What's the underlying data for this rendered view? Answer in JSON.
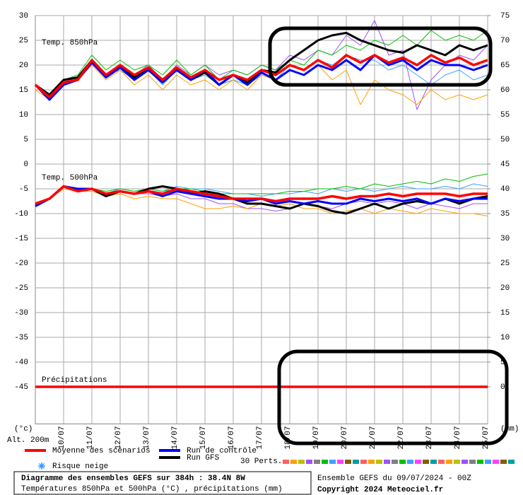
{
  "chart_data": {
    "type": "line",
    "title": "Diagramme des ensembles GEFS sur 384h : 38.4N 8W",
    "subtitle": "Températures 850hPa et 500hPa (°C) , précipitations (mm)",
    "run_info": "Ensemble GEFS du 09/07/2024 - 00Z",
    "copyright": "Copyright 2024 Meteociel.fr",
    "y_label": "(°c)",
    "y2_label": "(mm)",
    "altitude": "Alt. 200m",
    "snow_label": "Risque neige",
    "perts_label": "30 Perts.",
    "panel_labels": [
      "Temp. 850hPa",
      "Temp. 500hPa",
      "Précipitations"
    ],
    "grid": true,
    "x": [
      0,
      12,
      24,
      36,
      48,
      60,
      72,
      84,
      96,
      108,
      120,
      132,
      144,
      156,
      168,
      180,
      192,
      204,
      216,
      228,
      240,
      252,
      264,
      276,
      288,
      300,
      312,
      324,
      336,
      348,
      360,
      372,
      384
    ],
    "xlim": [
      0,
      384
    ],
    "xticks": [
      {
        "value": 24,
        "label": "10/07"
      },
      {
        "value": 48,
        "label": "11/07"
      },
      {
        "value": 72,
        "label": "12/07"
      },
      {
        "value": 96,
        "label": "13/07"
      },
      {
        "value": 120,
        "label": "14/07"
      },
      {
        "value": 144,
        "label": "15/07"
      },
      {
        "value": 168,
        "label": "16/07"
      },
      {
        "value": 192,
        "label": "17/07"
      },
      {
        "value": 216,
        "label": "18/07"
      },
      {
        "value": 240,
        "label": "19/07"
      },
      {
        "value": 264,
        "label": "20/07"
      },
      {
        "value": 288,
        "label": "21/07"
      },
      {
        "value": 312,
        "label": "22/07"
      },
      {
        "value": 336,
        "label": "23/07"
      },
      {
        "value": 360,
        "label": "24/07"
      },
      {
        "value": 384,
        "label": "25/07"
      }
    ],
    "ylim": [
      -52.5,
      30
    ],
    "yticks": [
      30,
      25,
      20,
      15,
      10,
      5,
      0,
      -5,
      -10,
      -15,
      -20,
      -25,
      -30,
      -35,
      -40,
      -45
    ],
    "y2lim": [
      -7.5,
      75
    ],
    "y2ticks": [
      75,
      70,
      65,
      60,
      55,
      50,
      45,
      40,
      35,
      30,
      25,
      20,
      15,
      10,
      5,
      0
    ],
    "series": [
      {
        "name": "Moyenne des scénarios",
        "color": "#ff0000",
        "values": [
          16,
          13.5,
          16.5,
          17,
          21,
          18,
          20,
          18,
          19.5,
          17,
          19.5,
          17.5,
          19,
          17,
          18,
          17,
          19,
          18,
          20,
          19,
          21,
          19.5,
          22,
          20.5,
          22,
          20.5,
          21.5,
          20,
          22,
          20.5,
          21.5,
          20,
          21
        ],
        "values_500": [
          -8,
          -7,
          -4.5,
          -5.5,
          -5,
          -6,
          -5.5,
          -6,
          -5.5,
          -6,
          -5,
          -5.5,
          -6,
          -6.5,
          -7,
          -7,
          -7,
          -7.5,
          -7,
          -7,
          -7,
          -6.5,
          -7,
          -6.5,
          -6.5,
          -6,
          -6.5,
          -6,
          -6,
          -6,
          -6.5,
          -6,
          -6
        ]
      },
      {
        "name": "Run de contrôle",
        "color": "#0000ff",
        "values": [
          16,
          13,
          16,
          17,
          20.5,
          17.5,
          19.5,
          17,
          19,
          16.5,
          19,
          17,
          19,
          16,
          18,
          16,
          18.5,
          17,
          19,
          18,
          20,
          19,
          21,
          19,
          22,
          20,
          21,
          19,
          21,
          20,
          20,
          19,
          20
        ],
        "values_500": [
          -8.5,
          -7,
          -4.5,
          -5,
          -5,
          -6,
          -5.5,
          -6,
          -5.5,
          -6.5,
          -5.5,
          -6,
          -6.5,
          -7,
          -7,
          -7.5,
          -7,
          -8,
          -7.5,
          -8,
          -7.5,
          -8,
          -8,
          -7,
          -7.5,
          -7,
          -7.5,
          -7,
          -8,
          -7,
          -7.5,
          -7,
          -7
        ]
      },
      {
        "name": "Run GFS",
        "color": "#000000",
        "values": [
          16,
          14,
          17,
          17.5,
          21,
          18,
          20,
          17.5,
          19,
          16.5,
          19,
          17,
          18.5,
          16,
          18,
          16.5,
          19,
          18.5,
          21,
          23,
          25,
          26,
          26.5,
          25,
          24,
          23,
          22.5,
          24,
          23,
          22,
          24,
          23,
          24
        ],
        "values_500": [
          -8,
          -7,
          -4.5,
          -5.5,
          -5,
          -6.5,
          -5.5,
          -6,
          -5,
          -4.5,
          -5,
          -6,
          -5.5,
          -6,
          -7,
          -8,
          -8,
          -8.5,
          -9,
          -8,
          -8.5,
          -9.5,
          -10,
          -9,
          -8,
          -9,
          -8,
          -7.5,
          -8,
          -7,
          -8,
          -7,
          -6.5
        ]
      },
      {
        "color": "#00c000",
        "values": [
          16,
          14,
          17,
          18,
          22,
          19,
          21,
          19,
          20,
          18,
          21,
          18,
          20,
          17,
          19,
          18,
          20,
          19,
          21,
          20,
          23,
          22,
          24,
          23,
          25,
          24,
          26,
          24,
          27,
          25,
          26,
          25,
          27
        ],
        "values_500": [
          -8,
          -7,
          -4.5,
          -5,
          -5,
          -5.5,
          -5,
          -5.5,
          -5,
          -5.5,
          -5,
          -5,
          -5.5,
          -6,
          -6,
          -6,
          -6,
          -6,
          -5.5,
          -5.5,
          -5,
          -5,
          -4.5,
          -5,
          -4,
          -4.5,
          -4,
          -3.5,
          -4,
          -3,
          -3.5,
          -2.5,
          -2
        ]
      },
      {
        "color": "#ffa000",
        "values": [
          15,
          13,
          16,
          17,
          20,
          17,
          19,
          16,
          18,
          15,
          18,
          16,
          17,
          15,
          17,
          15,
          18,
          17,
          19,
          18,
          20,
          17,
          19,
          12,
          17,
          15,
          14,
          12,
          15,
          13,
          14,
          13,
          14
        ],
        "values_500": [
          -8,
          -7,
          -5,
          -5.5,
          -5.5,
          -6.5,
          -6,
          -7,
          -6.5,
          -7,
          -7,
          -8,
          -9,
          -9,
          -8.5,
          -9,
          -8,
          -8.5,
          -8,
          -9,
          -9,
          -10,
          -9.5,
          -9,
          -10,
          -9,
          -9.5,
          -10,
          -9,
          -9.5,
          -10,
          -10,
          -10.5
        ]
      },
      {
        "color": "#a050ff",
        "values": [
          16,
          14,
          17,
          17,
          21,
          18,
          20,
          18,
          20,
          17,
          20,
          18,
          20,
          18,
          19,
          18,
          20,
          19,
          22,
          21,
          23,
          22,
          26,
          24,
          29,
          22,
          23,
          11,
          17,
          20,
          22,
          21,
          24
        ],
        "values_500": [
          -8,
          -7,
          -4.5,
          -5,
          -5,
          -6,
          -5.5,
          -6,
          -6,
          -6.5,
          -6,
          -7,
          -7,
          -8,
          -8,
          -9,
          -9,
          -9.5,
          -9,
          -8,
          -8.5,
          -9,
          -8,
          -7.5,
          -8,
          -7.5,
          -8,
          -9,
          -8,
          -8.5,
          -9,
          -8,
          -8
        ]
      },
      {
        "color": "#40a0ff",
        "values": [
          16,
          14,
          16,
          17,
          21,
          18,
          19,
          17,
          19,
          16,
          19,
          17,
          18,
          16,
          17,
          16,
          18,
          17,
          20,
          19,
          21,
          20,
          22,
          21,
          21,
          19,
          20,
          18,
          16,
          18,
          19,
          17,
          18
        ],
        "values_500": [
          -8,
          -7,
          -4.5,
          -5,
          -5,
          -6,
          -5,
          -5.5,
          -5,
          -5.5,
          -4.5,
          -5,
          -5,
          -5.5,
          -6,
          -6,
          -6.5,
          -6,
          -6,
          -5.5,
          -6,
          -5,
          -5.5,
          -5,
          -5.5,
          -5,
          -4.5,
          -5,
          -5,
          -4.5,
          -5,
          -4,
          -4.5
        ]
      }
    ],
    "precipitation": {
      "color": "#ff0000",
      "axis": "y2",
      "values": [
        0,
        0,
        0,
        0,
        0,
        0,
        0,
        0,
        0,
        0,
        0,
        0,
        0,
        0,
        0,
        0,
        0,
        0,
        0,
        0,
        0,
        0,
        0,
        0,
        0,
        0,
        0,
        0,
        0,
        0,
        0,
        0,
        0
      ]
    }
  }
}
